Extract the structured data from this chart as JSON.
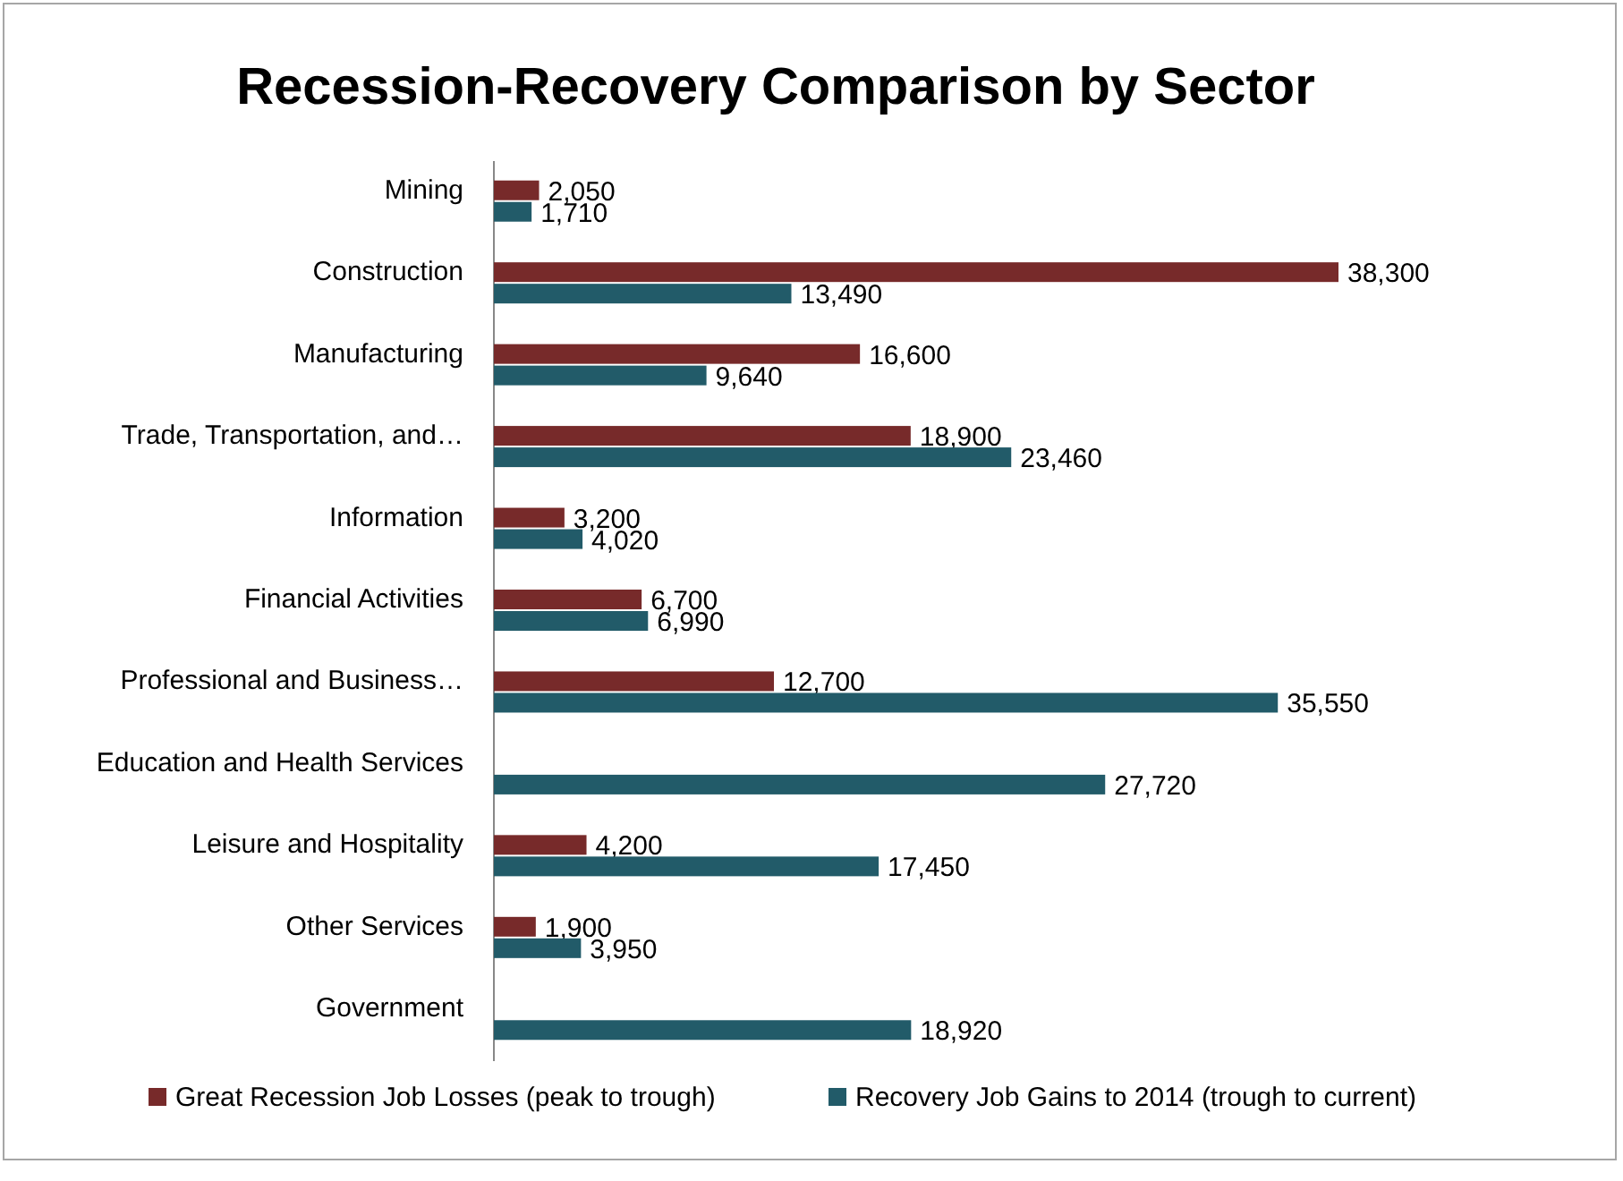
{
  "chart_data": {
    "type": "bar",
    "orientation": "horizontal",
    "title": "Recession-Recovery Comparison by Sector",
    "categories": [
      "Mining",
      "Construction",
      "Manufacturing",
      "Trade, Transportation, and…",
      "Information",
      "Financial Activities",
      "Professional and Business…",
      "Education and Health Services",
      "Leisure and Hospitality",
      "Other Services",
      "Government"
    ],
    "series": [
      {
        "name": "Great Recession Job Losses (peak to trough)",
        "color": "#772a2a",
        "values": [
          2050,
          38300,
          16600,
          18900,
          3200,
          6700,
          12700,
          null,
          4200,
          1900,
          null
        ],
        "value_labels": [
          "2,050",
          "38,300",
          "16,600",
          "18,900",
          "3,200",
          "6,700",
          "12,700",
          null,
          "4,200",
          "1,900",
          null
        ]
      },
      {
        "name": "Recovery Job Gains to 2014 (trough to current)",
        "color": "#225b69",
        "values": [
          1710,
          13490,
          9640,
          23460,
          4020,
          6990,
          35550,
          27720,
          17450,
          3950,
          18920
        ],
        "value_labels": [
          "1,710",
          "13,490",
          "9,640",
          "23,460",
          "4,020",
          "6,990",
          "35,550",
          "27,720",
          "17,450",
          "3,950",
          "18,920"
        ]
      }
    ],
    "legend": "bottom"
  }
}
